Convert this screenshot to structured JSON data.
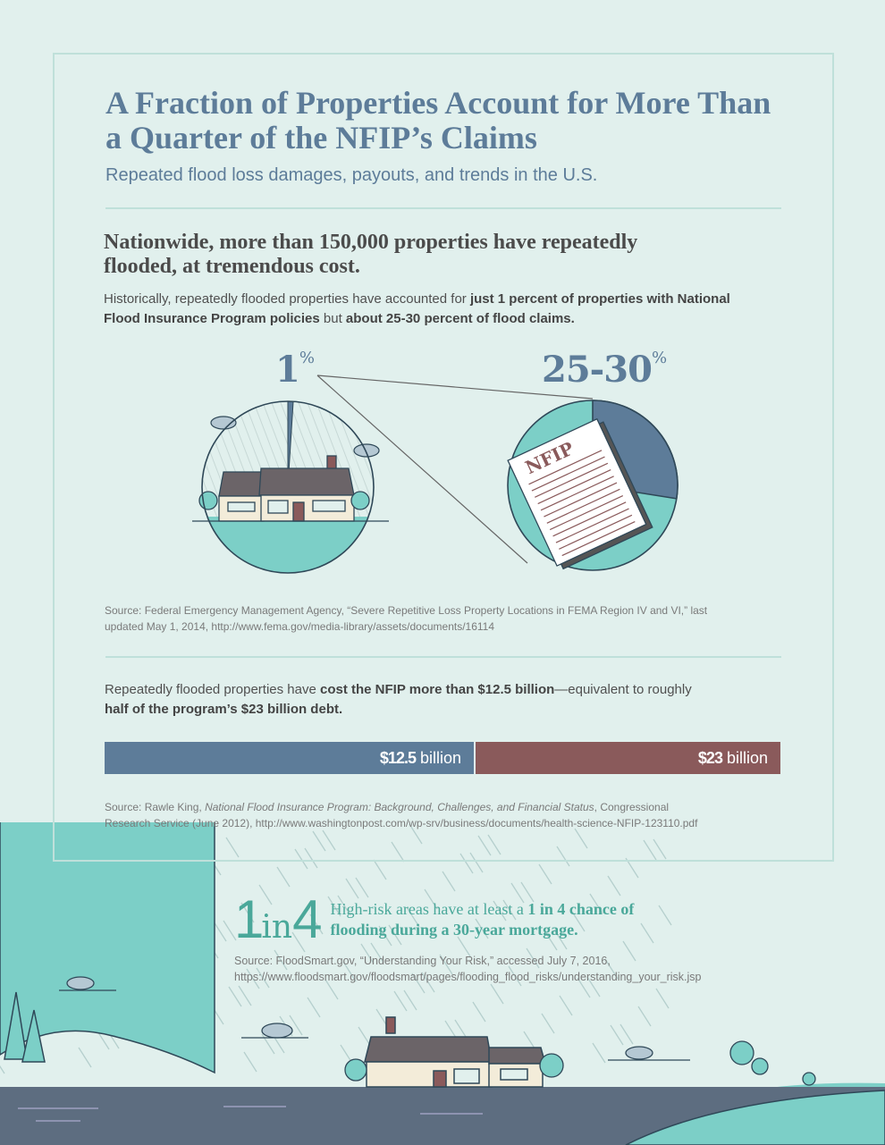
{
  "title": "A Fraction of Properties Account for More Than a Quarter of the NFIP’s Claims",
  "subtitle": "Repeated flood loss damages, payouts, and trends in the U.S.",
  "section1": {
    "heading": "Nationwide, more than 150,000 properties have repeatedly flooded, at tremendous cost.",
    "para_a": "Historically, repeatedly flooded properties have accounted for ",
    "para_b": "just 1 percent of properties with National Flood Insurance Program policies",
    "para_c": " but ",
    "para_d": "about 25-30 percent of flood claims.",
    "stat_left": "1",
    "stat_left_unit": "%",
    "stat_right": "25-30",
    "stat_right_unit": "%",
    "document_label": "NFIP",
    "source": "Source: Federal Emergency Management Agency, “Severe Repetitive Loss Property Locations in FEMA Region IV and VI,” last updated May 1, 2014, http://www.fema.gov/media-library/assets/documents/16114"
  },
  "chart_data": {
    "type": "pie",
    "slices": [
      {
        "label": "1%",
        "value": 1
      },
      {
        "label": "25-30%",
        "value": 27.5
      }
    ]
  },
  "section2": {
    "para_a": "Repeatedly flooded properties have ",
    "para_b": "cost the NFIP more than $12.5 billion",
    "para_c": "—equivalent to roughly ",
    "para_d": "half of the program’s $23 billion debt.",
    "bar1_value": "$12.5",
    "bar1_unit": " billion",
    "bar1_amount": 12.5,
    "bar2_value": "$23",
    "bar2_unit": " billion",
    "bar2_amount": 23,
    "source_a": "Source: Rawle King, ",
    "source_b": "National Flood Insurance Program: Background, Challenges, and Financial Status",
    "source_c": ", Congressional Research Service (June 2012), http://www.washingtonpost.com/wp-srv/business/documents/health-science-NFIP-123110.pdf"
  },
  "risk": {
    "num1": "1",
    "word": "in",
    "num2": "4",
    "text_a": "High-risk areas have at least a ",
    "text_b": "1 in 4 chance of flooding during a 30-year mortgage.",
    "source": "Source: FloodSmart.gov, “Understanding Your Risk,” accessed July 7, 2016, https://www.floodsmart.gov/floodsmart/pages/flooding_flood_risks/understanding_your_risk.jsp"
  },
  "colors": {
    "slate": "#5d7c99",
    "maroon": "#8a5a5b",
    "teal": "#7ccfc7",
    "background": "#e1f0ed",
    "accent_text": "#4aa89a"
  }
}
